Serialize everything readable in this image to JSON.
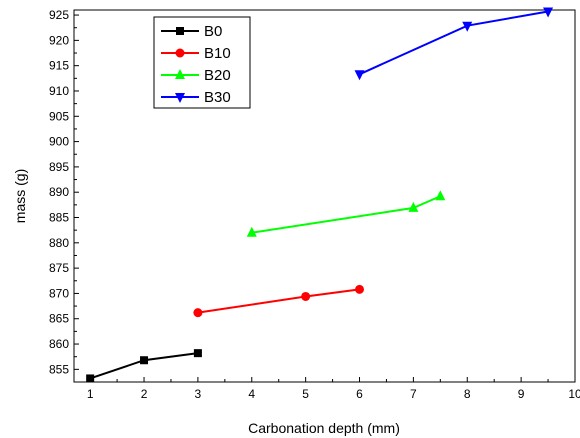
{
  "chart_data": {
    "type": "line",
    "title": "",
    "xlabel": "Carbonation depth (mm)",
    "ylabel": "mass (g)",
    "xlim": [
      0.7,
      10
    ],
    "ylim": [
      852.5,
      926
    ],
    "xticks": [
      1,
      2,
      3,
      4,
      5,
      6,
      7,
      8,
      9,
      10
    ],
    "yticks": [
      855,
      860,
      865,
      870,
      875,
      880,
      885,
      890,
      895,
      900,
      905,
      910,
      915,
      920,
      925
    ],
    "grid": false,
    "legend_position": "top-left",
    "series": [
      {
        "name": "B0",
        "color": "#000000",
        "marker": "square",
        "x": [
          1,
          2,
          3
        ],
        "y": [
          853.2,
          856.8,
          858.2
        ]
      },
      {
        "name": "B10",
        "color": "#ff0000",
        "marker": "circle",
        "x": [
          3,
          5,
          6
        ],
        "y": [
          866.2,
          869.4,
          870.8
        ]
      },
      {
        "name": "B20",
        "color": "#00ff00",
        "marker": "triangle-up",
        "x": [
          4,
          7,
          7.5
        ],
        "y": [
          882.0,
          886.9,
          889.2
        ]
      },
      {
        "name": "B30",
        "color": "#0000ff",
        "marker": "triangle-down",
        "x": [
          6,
          8,
          9.5
        ],
        "y": [
          913.3,
          922.9,
          925.7
        ]
      }
    ]
  }
}
